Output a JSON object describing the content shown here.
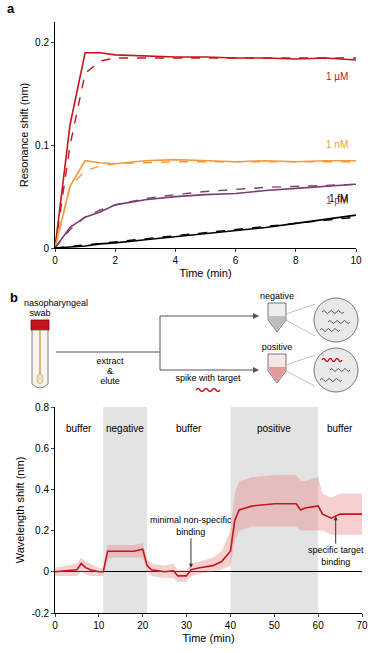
{
  "chart_data": [
    {
      "panel": "a",
      "type": "line",
      "x_label": "Time (min)",
      "y_label": "Resonance shift (nm)",
      "x": [
        0,
        0.5,
        1,
        1.5,
        2,
        3,
        4,
        5,
        6,
        7,
        8,
        9,
        10
      ],
      "xlim": [
        0,
        10
      ],
      "xticks": [
        0,
        2,
        4,
        6,
        8,
        10
      ],
      "ylim": [
        0,
        0.22
      ],
      "yticks": [
        0,
        0.1,
        0.2
      ],
      "grid": false,
      "series": [
        {
          "name": "1 µM",
          "color": "#c4161c",
          "values": [
            0,
            0.12,
            0.19,
            0.19,
            0.188,
            0.187,
            0.186,
            0.186,
            0.185,
            0.185,
            0.184,
            0.185,
            0.183
          ],
          "fit": [
            0,
            0.1,
            0.17,
            0.182,
            0.185,
            0.185,
            0.185,
            0.185,
            0.185,
            0.185,
            0.185,
            0.185,
            0.185
          ]
        },
        {
          "name": "1 nM",
          "color": "#f39a3c",
          "values": [
            0,
            0.06,
            0.085,
            0.083,
            0.082,
            0.085,
            0.086,
            0.085,
            0.084,
            0.085,
            0.084,
            0.085,
            0.085
          ],
          "fit": [
            0,
            0.06,
            0.075,
            0.08,
            0.082,
            0.083,
            0.084,
            0.084,
            0.084,
            0.084,
            0.084,
            0.084,
            0.084
          ]
        },
        {
          "name": "1 pM",
          "color": "#7b3f73",
          "values": [
            0,
            0.02,
            0.03,
            0.035,
            0.042,
            0.047,
            0.05,
            0.052,
            0.053,
            0.056,
            0.058,
            0.06,
            0.062
          ],
          "fit": [
            0,
            0.018,
            0.03,
            0.037,
            0.042,
            0.048,
            0.052,
            0.055,
            0.057,
            0.059,
            0.06,
            0.061,
            0.062
          ]
        },
        {
          "name": "1 fM",
          "color": "#000000",
          "values": [
            0,
            0.001,
            0.002,
            0.004,
            0.005,
            0.008,
            0.011,
            0.014,
            0.017,
            0.02,
            0.024,
            0.028,
            0.032
          ],
          "fit": [
            0,
            0.0015,
            0.003,
            0.0045,
            0.006,
            0.009,
            0.012,
            0.015,
            0.018,
            0.021,
            0.024,
            0.027,
            0.03
          ]
        }
      ]
    },
    {
      "panel": "b",
      "type": "line",
      "x_label": "Time (min)",
      "y_label": "Wavelength shift (nm)",
      "x": [
        0,
        5,
        6,
        7,
        8,
        10,
        11,
        12,
        13,
        15,
        18,
        20,
        21,
        22,
        25,
        27,
        28,
        30,
        31,
        33,
        36,
        38,
        40,
        41,
        42,
        45,
        50,
        55,
        56,
        57,
        60,
        61,
        63,
        65,
        70
      ],
      "xlim": [
        0,
        70
      ],
      "xticks": [
        0,
        10,
        20,
        30,
        40,
        50,
        60,
        70
      ],
      "ylim": [
        -0.2,
        0.8
      ],
      "yticks": [
        -0.2,
        0,
        0.2,
        0.4,
        0.6,
        0.8
      ],
      "grid": false,
      "series": [
        {
          "color": "#c4161c",
          "values": [
            0,
            0.01,
            0.04,
            0.02,
            0.01,
            0,
            0,
            0.1,
            0.1,
            0.1,
            0.1,
            0.11,
            0.03,
            0.01,
            0,
            0.005,
            -0.02,
            -0.02,
            0.01,
            0.02,
            0.03,
            0.05,
            0.1,
            0.25,
            0.3,
            0.32,
            0.33,
            0.33,
            0.3,
            0.31,
            0.32,
            0.28,
            0.26,
            0.28,
            0.28
          ],
          "lower": [
            -0.02,
            -0.02,
            0,
            -0.01,
            -0.02,
            -0.02,
            -0.02,
            0.06,
            0.07,
            0.07,
            0.07,
            0.07,
            0,
            -0.02,
            -0.03,
            -0.03,
            -0.05,
            -0.05,
            -0.02,
            -0.01,
            0,
            0.01,
            0.03,
            0.15,
            0.2,
            0.22,
            0.22,
            0.22,
            0.2,
            0.2,
            0.2,
            0.2,
            0.18,
            0.18,
            0.18
          ],
          "upper": [
            0.02,
            0.04,
            0.07,
            0.05,
            0.04,
            0.02,
            0.02,
            0.13,
            0.13,
            0.13,
            0.13,
            0.14,
            0.06,
            0.04,
            0.03,
            0.04,
            0.01,
            0.01,
            0.04,
            0.05,
            0.07,
            0.1,
            0.2,
            0.38,
            0.44,
            0.46,
            0.47,
            0.47,
            0.44,
            0.44,
            0.46,
            0.38,
            0.36,
            0.38,
            0.38
          ]
        }
      ],
      "phases": [
        {
          "label": "buffer",
          "start": 0,
          "end": 11,
          "shaded": false
        },
        {
          "label": "negative",
          "start": 11,
          "end": 21,
          "shaded": true
        },
        {
          "label": "buffer",
          "start": 21,
          "end": 40,
          "shaded": false
        },
        {
          "label": "positive",
          "start": 40,
          "end": 60,
          "shaded": true
        },
        {
          "label": "buffer",
          "start": 60,
          "end": 70,
          "shaded": false
        }
      ],
      "annotations": [
        {
          "lines": [
            "minimal non-specific",
            "binding"
          ],
          "x": 31,
          "y": 0.02
        },
        {
          "lines": [
            "specific target",
            "binding"
          ],
          "x": 64,
          "y": 0.27
        }
      ]
    }
  ],
  "diagram": {
    "source": [
      "nasopharyngeal",
      "swab"
    ],
    "step": [
      "extract",
      "&",
      "elute"
    ],
    "spike": "spike with target",
    "negative": "negative",
    "positive": "positive"
  }
}
